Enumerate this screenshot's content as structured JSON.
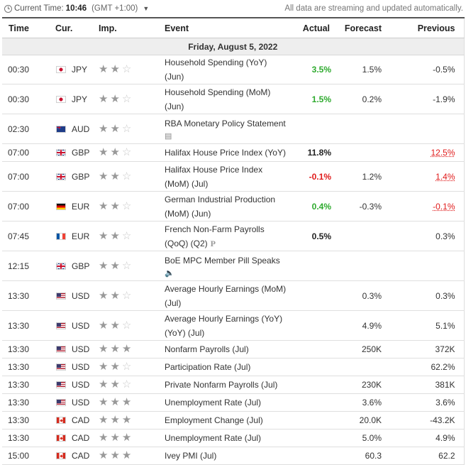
{
  "topbar": {
    "clock_icon": "clock-icon",
    "current_time_label": "Current Time:",
    "current_time": "10:46",
    "timezone": "(GMT +1:00)",
    "notice": "All data are streaming and updated automatically."
  },
  "columns": {
    "time": "Time",
    "currency": "Cur.",
    "importance": "Imp.",
    "event": "Event",
    "actual": "Actual",
    "forecast": "Forecast",
    "previous": "Previous"
  },
  "date_header": "Friday, August 5, 2022",
  "colors": {
    "positive": "#2eaa2e",
    "negative": "#e01a1a"
  },
  "events": [
    {
      "time": "00:30",
      "flag": "jp",
      "currency": "JPY",
      "importance": 2,
      "event": "Household Spending (YoY) (Jun)",
      "actual": "3.5%",
      "actual_status": "green",
      "forecast": "1.5%",
      "previous": "-0.5%",
      "previous_status": "",
      "tall": false
    },
    {
      "time": "00:30",
      "flag": "jp",
      "currency": "JPY",
      "importance": 2,
      "event": "Household Spending (MoM) (Jun)",
      "actual": "1.5%",
      "actual_status": "green",
      "forecast": "0.2%",
      "previous": "-1.9%",
      "previous_status": "",
      "tall": true
    },
    {
      "time": "02:30",
      "flag": "au",
      "currency": "AUD",
      "importance": 2,
      "event": "RBA Monetary Policy Statement",
      "icon": "document-icon",
      "actual": "",
      "actual_status": "",
      "forecast": "",
      "previous": "",
      "previous_status": "",
      "tall": true
    },
    {
      "time": "07:00",
      "flag": "gb",
      "currency": "GBP",
      "importance": 2,
      "event": "Halifax House Price Index (YoY)",
      "actual": "11.8%",
      "actual_status": "black",
      "forecast": "",
      "previous": "12.5%",
      "previous_status": "revised-red",
      "tall": false
    },
    {
      "time": "07:00",
      "flag": "gb",
      "currency": "GBP",
      "importance": 2,
      "event": "Halifax House Price Index (MoM) (Jul)",
      "actual": "-0.1%",
      "actual_status": "red",
      "forecast": "1.2%",
      "previous": "1.4%",
      "previous_status": "revised-red",
      "tall": true
    },
    {
      "time": "07:00",
      "flag": "de",
      "currency": "EUR",
      "importance": 2,
      "event": "German Industrial Production (MoM) (Jun)",
      "actual": "0.4%",
      "actual_status": "green",
      "forecast": "-0.3%",
      "previous": "-0.1%",
      "previous_status": "revised-red",
      "tall": true
    },
    {
      "time": "07:45",
      "flag": "fr",
      "currency": "EUR",
      "importance": 2,
      "event": "French Non-Farm Payrolls (QoQ) (Q2)",
      "prelim": "P",
      "actual": "0.5%",
      "actual_status": "black",
      "forecast": "",
      "previous": "0.3%",
      "previous_status": "",
      "tall": true
    },
    {
      "time": "12:15",
      "flag": "gb",
      "currency": "GBP",
      "importance": 2,
      "event": "BoE MPC Member Pill Speaks",
      "icon": "speaker-icon",
      "actual": "",
      "actual_status": "",
      "forecast": "",
      "previous": "",
      "previous_status": "",
      "tall": true
    },
    {
      "time": "13:30",
      "flag": "us",
      "currency": "USD",
      "importance": 2,
      "event": "Average Hourly Earnings (MoM) (Jul)",
      "actual": "",
      "actual_status": "",
      "forecast": "0.3%",
      "previous": "0.3%",
      "previous_status": "",
      "tall": true
    },
    {
      "time": "13:30",
      "flag": "us",
      "currency": "USD",
      "importance": 2,
      "event": "Average Hourly Earnings (YoY) (YoY) (Jul)",
      "actual": "",
      "actual_status": "",
      "forecast": "4.9%",
      "previous": "5.1%",
      "previous_status": "",
      "tall": true
    },
    {
      "time": "13:30",
      "flag": "us",
      "currency": "USD",
      "importance": 3,
      "event": "Nonfarm Payrolls (Jul)",
      "actual": "",
      "actual_status": "",
      "forecast": "250K",
      "previous": "372K",
      "previous_status": "",
      "tall": false
    },
    {
      "time": "13:30",
      "flag": "us",
      "currency": "USD",
      "importance": 2,
      "event": "Participation Rate (Jul)",
      "actual": "",
      "actual_status": "",
      "forecast": "",
      "previous": "62.2%",
      "previous_status": "",
      "tall": false
    },
    {
      "time": "13:30",
      "flag": "us",
      "currency": "USD",
      "importance": 2,
      "event": "Private Nonfarm Payrolls (Jul)",
      "actual": "",
      "actual_status": "",
      "forecast": "230K",
      "previous": "381K",
      "previous_status": "",
      "tall": false
    },
    {
      "time": "13:30",
      "flag": "us",
      "currency": "USD",
      "importance": 3,
      "event": "Unemployment Rate (Jul)",
      "actual": "",
      "actual_status": "",
      "forecast": "3.6%",
      "previous": "3.6%",
      "previous_status": "",
      "tall": false
    },
    {
      "time": "13:30",
      "flag": "ca",
      "currency": "CAD",
      "importance": 3,
      "event": "Employment Change (Jul)",
      "actual": "",
      "actual_status": "",
      "forecast": "20.0K",
      "previous": "-43.2K",
      "previous_status": "",
      "tall": false
    },
    {
      "time": "13:30",
      "flag": "ca",
      "currency": "CAD",
      "importance": 3,
      "event": "Unemployment Rate (Jul)",
      "actual": "",
      "actual_status": "",
      "forecast": "5.0%",
      "previous": "4.9%",
      "previous_status": "",
      "tall": false
    },
    {
      "time": "15:00",
      "flag": "ca",
      "currency": "CAD",
      "importance": 3,
      "event": "Ivey PMI (Jul)",
      "actual": "",
      "actual_status": "",
      "forecast": "60.3",
      "previous": "62.2",
      "previous_status": "",
      "tall": false
    }
  ]
}
